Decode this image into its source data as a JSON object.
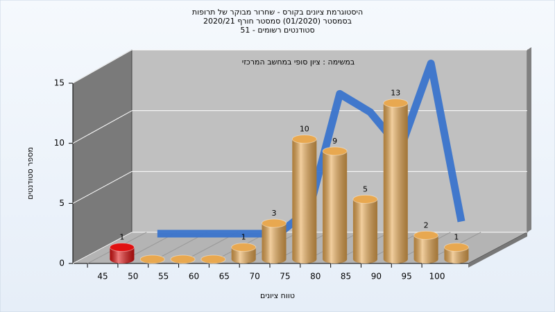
{
  "chart_data": {
    "type": "bar3d",
    "title_lines": [
      "היסטוגרמת ציונים בקורס - שחרור מבוקר של תרופות",
      "בסמסטר  (01/2020)  סמסטר חורף  2020/21",
      "סטודנטים רשומים - 51"
    ],
    "subtitle": "במשימה : ציון סופי במחשב המרכזי",
    "x_label": "טווח ציונים",
    "y_label": "מספר סטודנטים",
    "x": [
      45,
      50,
      55,
      60,
      65,
      70,
      75,
      80,
      85,
      90,
      95,
      100
    ],
    "values": [
      1,
      0,
      0,
      0,
      1,
      3,
      10,
      9,
      5,
      13,
      2,
      1
    ],
    "colors": [
      "#e01010",
      "#e8a850",
      "#e8a850",
      "#e8a850",
      "#e8a850",
      "#e8a850",
      "#e8a850",
      "#e8a850",
      "#e8a850",
      "#e8a850",
      "#e8a850",
      "#e8a850"
    ],
    "curve": {
      "color": "#3a74cc",
      "values": [
        null,
        0,
        0,
        0,
        0,
        0,
        2,
        11.5,
        10,
        7,
        14,
        1
      ]
    },
    "xticks": [
      45,
      50,
      55,
      60,
      65,
      70,
      75,
      80,
      85,
      90,
      95,
      100
    ],
    "ylim": [
      0,
      15
    ],
    "yticks": [
      0,
      5,
      10,
      15
    ],
    "grid": true
  }
}
